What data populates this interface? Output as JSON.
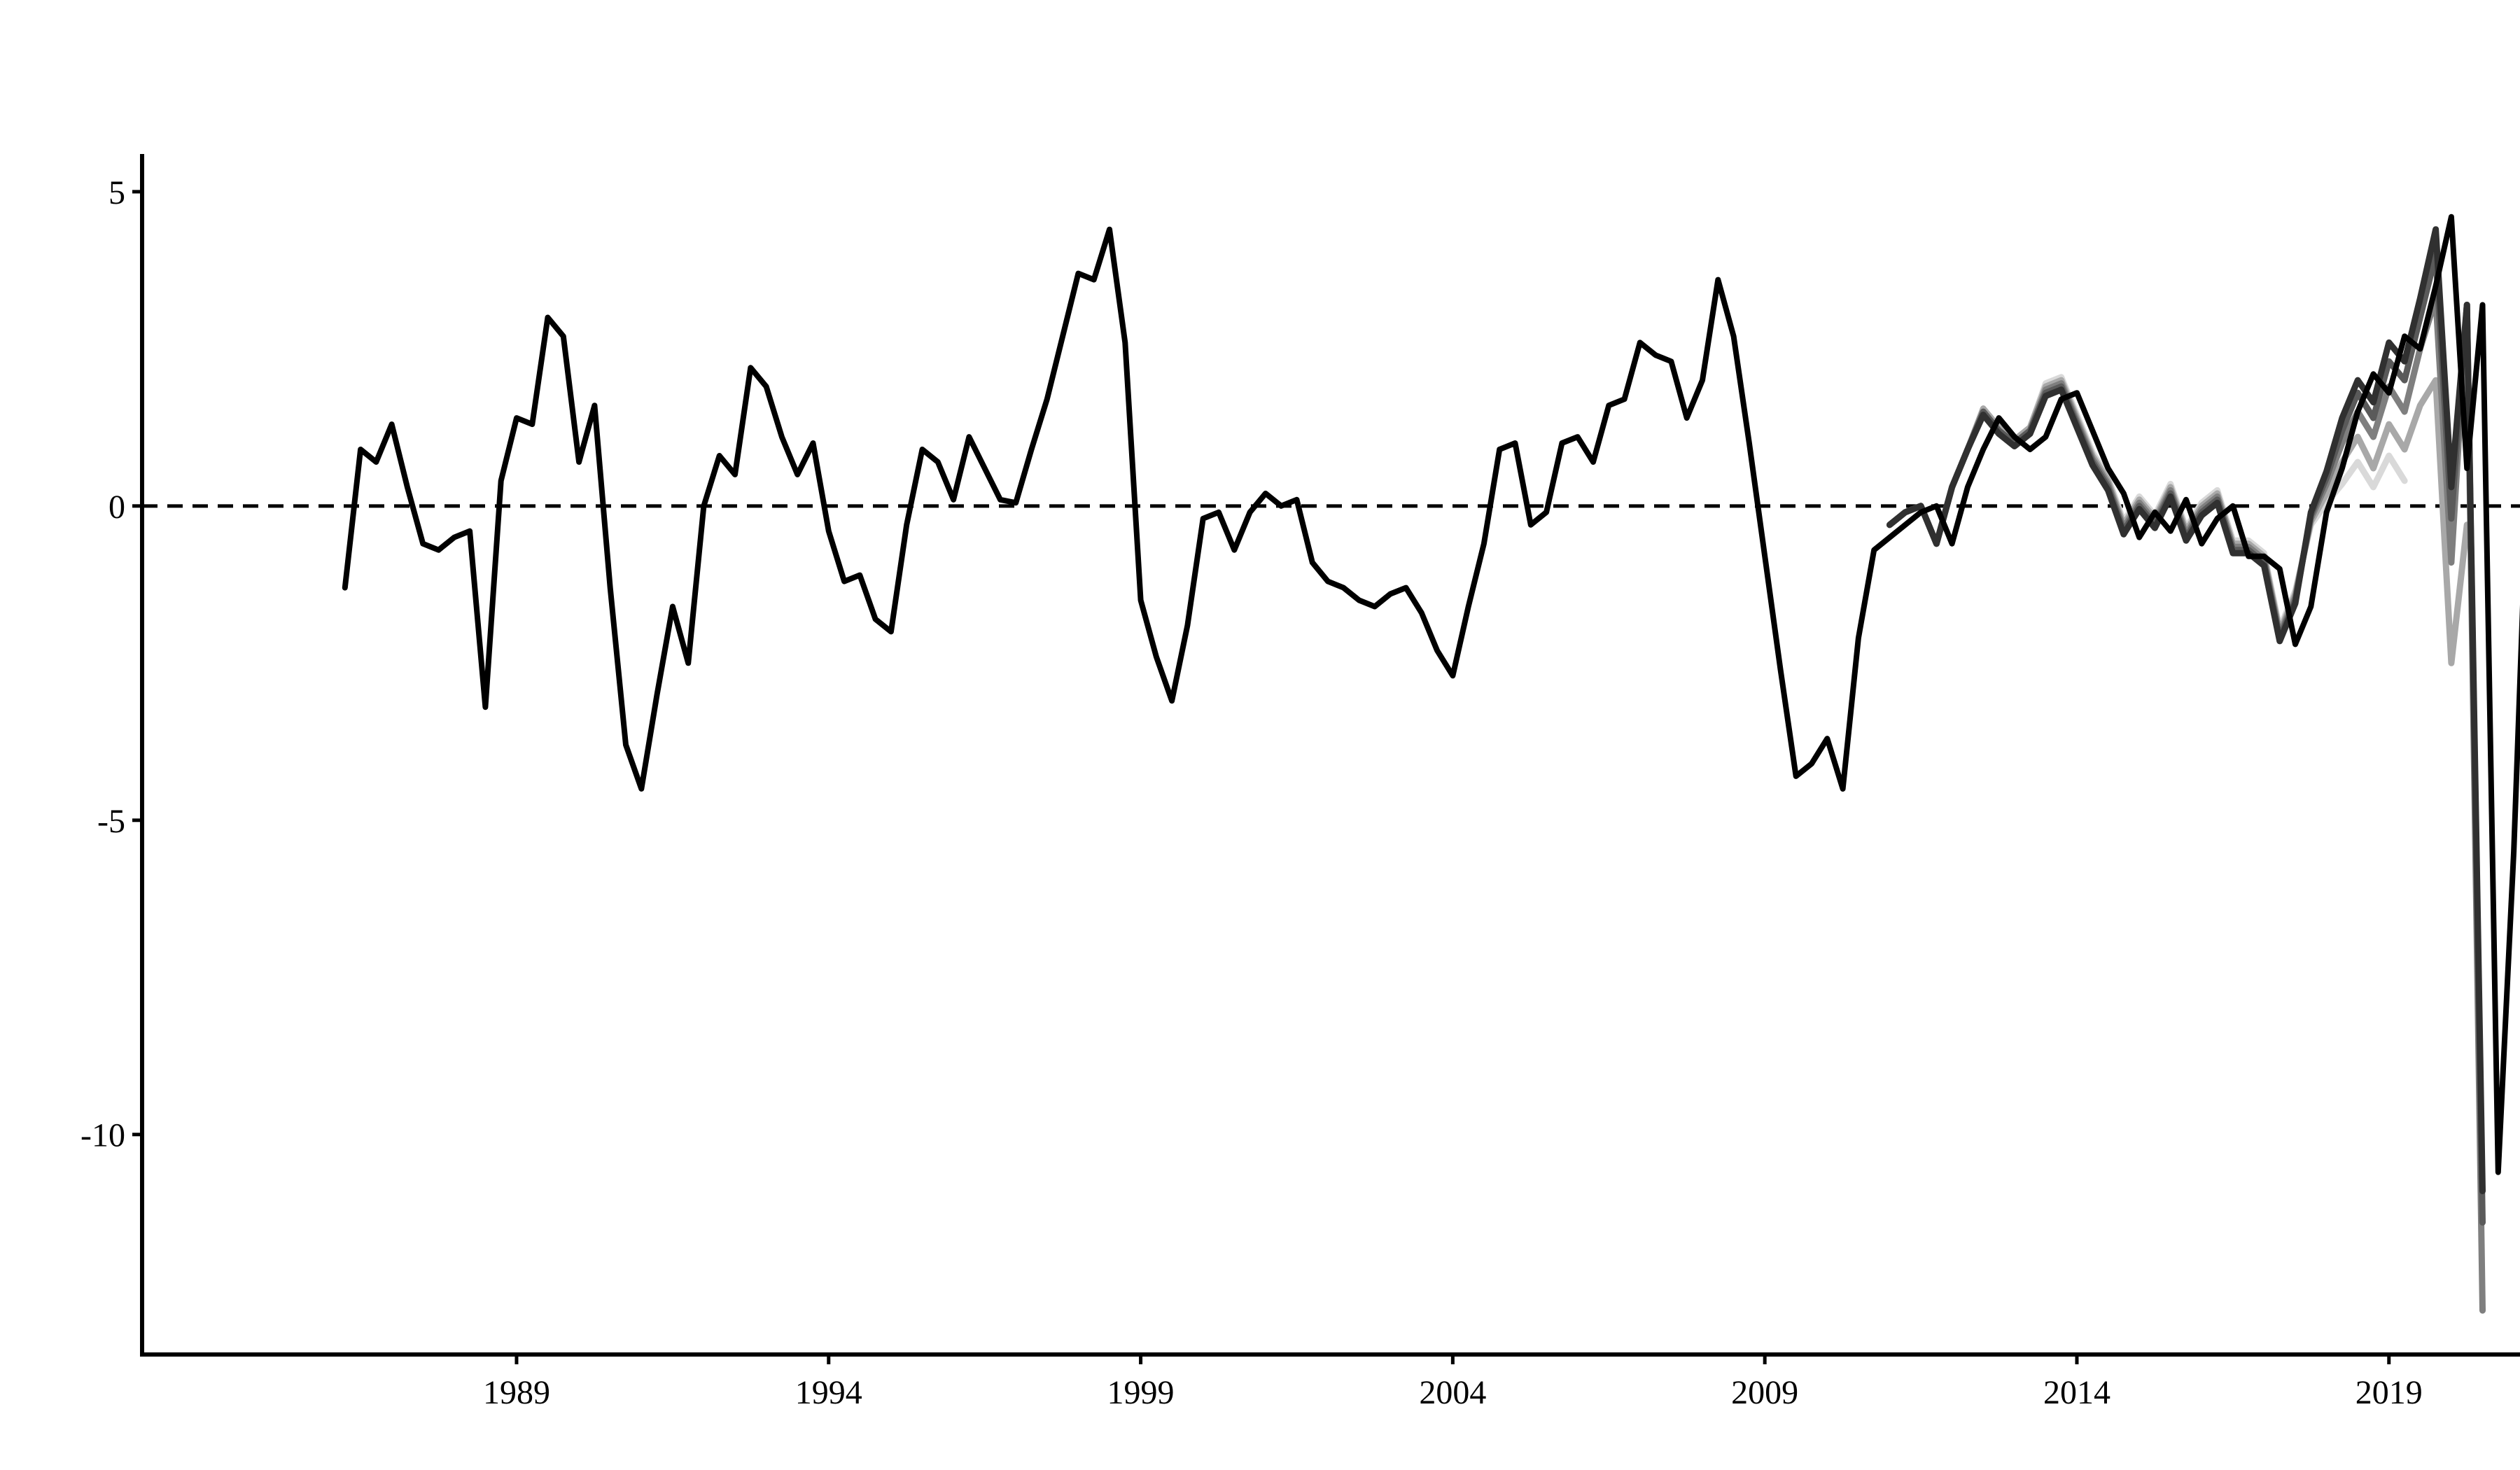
{
  "chart_data": {
    "type": "line",
    "title": "",
    "xlabel": "",
    "ylabel": "",
    "x_start": 1986.25,
    "x_step": 0.25,
    "xlim": [
      1983.0,
      2021.1
    ],
    "ylim": [
      -13.5,
      5.6
    ],
    "x_ticks": [
      1989,
      1994,
      1999,
      2004,
      2009,
      2014,
      2019
    ],
    "y_ticks": [
      5,
      0,
      -5,
      -10
    ],
    "x_tick_labels": [
      "1989",
      "1994",
      "1999",
      "2004",
      "2009",
      "2014",
      "2019"
    ],
    "y_tick_labels": [
      "5",
      "0",
      "-5",
      "-10"
    ],
    "reference_line": {
      "y": 0,
      "style": "dashed"
    },
    "grid": false,
    "legend": "none",
    "series": [
      {
        "color": "#000000",
        "values": [
          -1.3,
          0.9,
          0.7,
          1.3,
          0.3,
          -0.6,
          -0.7,
          -0.5,
          -0.4,
          -3.2,
          0.4,
          1.4,
          1.3,
          3.0,
          2.7,
          0.7,
          1.6,
          -1.3,
          -3.8,
          -4.5,
          -3.0,
          -1.6,
          -2.5,
          0.0,
          0.8,
          0.5,
          2.2,
          1.9,
          1.1,
          0.5,
          1.0,
          -0.4,
          -1.2,
          -1.1,
          -1.8,
          -2.0,
          -0.3,
          0.9,
          0.7,
          0.1,
          1.1,
          0.6,
          0.1,
          0.05,
          0.9,
          1.7,
          2.7,
          3.7,
          3.6,
          4.4,
          2.6,
          -1.5,
          -2.4,
          -3.1,
          -1.9,
          -0.2,
          -0.1,
          -0.7,
          -0.1,
          0.2,
          0.0,
          0.1,
          -0.9,
          -1.2,
          -1.3,
          -1.5,
          -1.6,
          -1.4,
          -1.3,
          -1.7,
          -2.3,
          -2.7,
          -1.6,
          -0.6,
          0.9,
          1.0,
          -0.3,
          -0.1,
          1.0,
          1.1,
          0.7,
          1.6,
          1.7,
          2.6,
          2.4,
          2.3,
          1.4,
          2.0,
          3.6,
          2.7,
          1.0,
          -0.8,
          -2.6,
          -4.3,
          -4.1,
          -3.7,
          -4.5,
          -2.1,
          -0.7,
          -0.5,
          -0.3,
          -0.1,
          0.0,
          -0.6,
          0.3,
          0.9,
          1.4,
          1.1,
          0.9,
          1.1,
          1.7,
          1.8,
          1.2,
          0.6,
          0.2,
          -0.5,
          -0.1,
          -0.4,
          0.1,
          -0.6,
          -0.2,
          0.0,
          -0.8,
          -0.8,
          -1.0,
          -2.2,
          -1.6,
          -0.1,
          0.6,
          1.5,
          2.1,
          1.8,
          2.7,
          2.5,
          3.5,
          4.6,
          0.6,
          3.2,
          -10.6,
          -5.5,
          1.3
        ]
      },
      {
        "color": "#303030",
        "start_x": 2011.0,
        "values": [
          -0.3,
          -0.1,
          0.0,
          -0.6,
          0.3,
          0.9,
          1.45,
          1.15,
          0.95,
          1.15,
          1.75,
          1.85,
          1.25,
          0.65,
          0.25,
          -0.45,
          -0.05,
          -0.35,
          0.15,
          -0.55,
          -0.15,
          0.05,
          -0.75,
          -0.75,
          -0.95,
          -2.15,
          -1.55,
          -0.1,
          0.55,
          1.4,
          2.0,
          1.65,
          2.6,
          2.3,
          3.3,
          4.4,
          0.3,
          3.2,
          -10.9
        ]
      },
      {
        "color": "#5a5a5a",
        "start_x": 2011.0,
        "values": [
          -0.3,
          -0.1,
          0.0,
          -0.6,
          0.3,
          0.9,
          1.5,
          1.2,
          1.0,
          1.2,
          1.8,
          1.9,
          1.3,
          0.7,
          0.3,
          -0.4,
          0.0,
          -0.3,
          0.2,
          -0.5,
          -0.1,
          0.1,
          -0.7,
          -0.7,
          -0.9,
          -2.1,
          -1.5,
          -0.15,
          0.45,
          1.2,
          1.8,
          1.4,
          2.3,
          2.0,
          3.0,
          4.0,
          -0.2,
          3.2,
          -11.4
        ]
      },
      {
        "color": "#7f7f7f",
        "start_x": 2011.0,
        "values": [
          -0.3,
          -0.1,
          0.0,
          -0.6,
          0.3,
          0.9,
          1.5,
          1.2,
          1.0,
          1.2,
          1.85,
          1.95,
          1.35,
          0.75,
          0.35,
          -0.35,
          0.05,
          -0.25,
          0.25,
          -0.45,
          -0.05,
          0.15,
          -0.65,
          -0.65,
          -0.85,
          -2.05,
          -1.45,
          -0.2,
          0.35,
          1.0,
          1.5,
          1.1,
          1.9,
          1.5,
          2.5,
          3.3,
          -0.9,
          3.2,
          -12.8
        ]
      },
      {
        "color": "#a8a8a8",
        "start_x": 2011.0,
        "values": [
          -0.3,
          -0.1,
          0.0,
          -0.6,
          0.3,
          0.9,
          1.55,
          1.25,
          1.05,
          1.25,
          1.9,
          2.0,
          1.4,
          0.8,
          0.4,
          -0.3,
          0.1,
          -0.2,
          0.3,
          -0.4,
          0.0,
          0.2,
          -0.6,
          -0.6,
          -0.8,
          -2.0,
          -1.4,
          -0.25,
          0.2,
          0.7,
          1.1,
          0.6,
          1.3,
          0.9,
          1.6,
          2.0,
          -2.5,
          -0.3
        ]
      },
      {
        "color": "#d9d9d9",
        "start_x": 2011.0,
        "values": [
          -0.3,
          -0.1,
          0.0,
          -0.6,
          0.3,
          0.9,
          1.55,
          1.25,
          1.05,
          1.25,
          1.95,
          2.05,
          1.45,
          0.85,
          0.45,
          -0.25,
          0.15,
          -0.15,
          0.35,
          -0.35,
          0.05,
          0.25,
          -0.55,
          -0.55,
          -0.75,
          -1.95,
          -1.35,
          -0.3,
          0.05,
          0.35,
          0.7,
          0.3,
          0.8,
          0.4
        ]
      }
    ]
  }
}
